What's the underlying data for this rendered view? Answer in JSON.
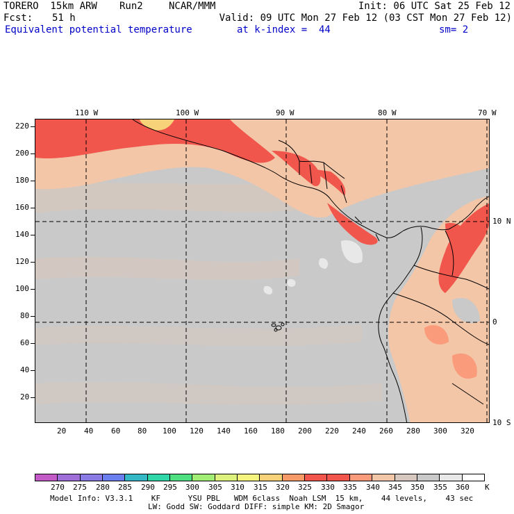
{
  "header": {
    "model": "TORERO  15km ARW",
    "run": "Run2",
    "org": "NCAR/MMM",
    "init": "Init: 06 UTC Sat 25 Feb 12",
    "fcst_label": "Fcst:",
    "fcst_value": "51 h",
    "valid": "Valid: 09 UTC Mon 27 Feb 12 (03 CST Mon 27 Feb 12)",
    "field": "Equivalent potential temperature",
    "level": "at k-index =  44",
    "smooth": "sm= 2"
  },
  "map": {
    "lon_labels": [
      "110 W",
      "100 W",
      "90 W",
      "80 W",
      "70 W"
    ],
    "lat_labels": [
      "10 N",
      "0",
      "10 S"
    ],
    "x_ticks": [
      "20",
      "40",
      "60",
      "80",
      "100",
      "120",
      "140",
      "160",
      "180",
      "200",
      "220",
      "240",
      "260",
      "280",
      "300",
      "320"
    ],
    "y_ticks": [
      "220",
      "200",
      "180",
      "160",
      "140",
      "120",
      "100",
      "80",
      "60",
      "40",
      "20"
    ],
    "colors": {
      "hot": "#f0564c",
      "warm": "#fa9b7c",
      "peach": "#f4c6a8",
      "tan": "#d6c8be",
      "gray": "#c9c9c9",
      "light": "#e8e8e8",
      "yellow": "#f8d278"
    }
  },
  "colorbar": {
    "labels": [
      "270",
      "275",
      "280",
      "285",
      "290",
      "295",
      "300",
      "305",
      "310",
      "315",
      "320",
      "325",
      "330",
      "335",
      "340",
      "345",
      "350",
      "355",
      "360"
    ],
    "unit": "K",
    "colors": [
      "#c45ac8",
      "#a06ed8",
      "#8a7ae6",
      "#6a7ef0",
      "#34b8c6",
      "#2ed6a8",
      "#4ee080",
      "#a2ee74",
      "#dcf27c",
      "#f4f47e",
      "#f8d278",
      "#f89a68",
      "#f0564c",
      "#f0564c",
      "#fa9b7c",
      "#f4c6a8",
      "#d6c8be",
      "#c9c9c9",
      "#e8e8e8",
      "#ffffff"
    ]
  },
  "footer": {
    "line1": "Model Info: V3.3.1    KF      YSU PBL   WDM 6class  Noah LSM  15 km,    44 levels,    43 sec",
    "line2": "LW: Godd SW: Goddard DIFF: simple KM: 2D Smagor"
  }
}
